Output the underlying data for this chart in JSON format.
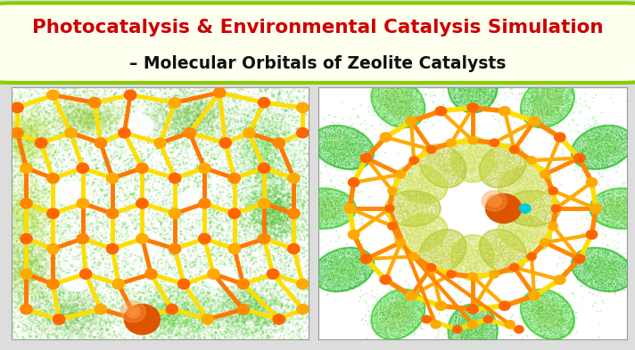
{
  "title_line1": "Photocatalysis & Environmental Catalysis Simulation",
  "title_line2": "– Molecular Orbitals of Zeolite Catalysts",
  "title_color1": "#cc0000",
  "title_color2": "#111111",
  "title_fontsize1": 15.5,
  "title_fontsize2": 13.5,
  "bg_color": "#fffff0",
  "border_color": "#88cc00",
  "figure_bg": "#dddddd",
  "left_bg": "#ffffff",
  "right_bg": "#ffffff"
}
